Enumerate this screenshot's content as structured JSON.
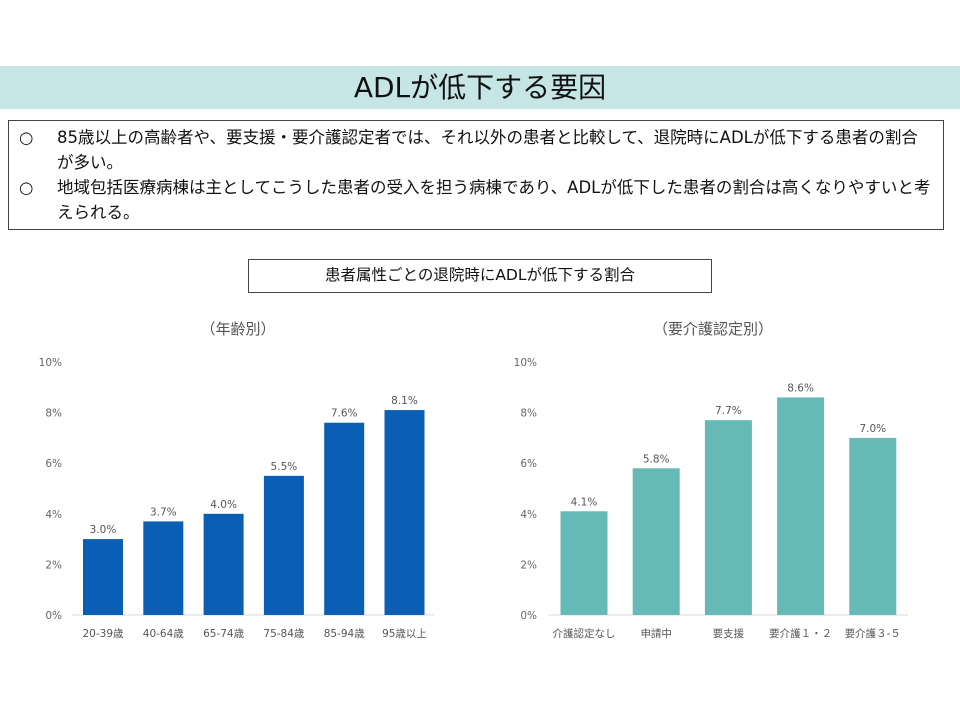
{
  "title": "ADLが低下する要因",
  "summary": {
    "bullet_mark": "○",
    "items": [
      "85歳以上の高齢者や、要支援・要介護認定者では、それ以外の患者と比較して、退院時にADLが低下する患者の割合が多い。",
      "地域包括医療病棟は主としてこうした患者の受入を担う病棟であり、ADLが低下した患者の割合は高くなりやすいと考えられる。"
    ]
  },
  "chart_heading": "患者属性ごとの退院時にADLが低下する割合",
  "chart_data": [
    {
      "type": "bar",
      "title": "（年齢別）",
      "categories": [
        "20-39歳",
        "40-64歳",
        "65-74歳",
        "75-84歳",
        "85-94歳",
        "95歳以上"
      ],
      "values": [
        3.0,
        3.7,
        4.0,
        5.5,
        7.6,
        8.1
      ],
      "data_labels": [
        "3.0%",
        "3.7%",
        "4.0%",
        "5.5%",
        "7.6%",
        "8.1%"
      ],
      "ylim": [
        0,
        10
      ],
      "yticks": [
        "0%",
        "2%",
        "4%",
        "6%",
        "8%",
        "10%"
      ],
      "color": "#0a5fb4",
      "grid": false
    },
    {
      "type": "bar",
      "title": "（要介護認定別）",
      "categories": [
        "介護認定なし",
        "申請中",
        "要支援",
        "要介護１・２",
        "要介護３-５"
      ],
      "values": [
        4.1,
        5.8,
        7.7,
        8.6,
        7.0
      ],
      "data_labels": [
        "4.1%",
        "5.8%",
        "7.7%",
        "8.6%",
        "7.0%"
      ],
      "ylim": [
        0,
        10
      ],
      "yticks": [
        "0%",
        "2%",
        "4%",
        "6%",
        "8%",
        "10%"
      ],
      "color": "#65bab8",
      "grid": false
    }
  ]
}
